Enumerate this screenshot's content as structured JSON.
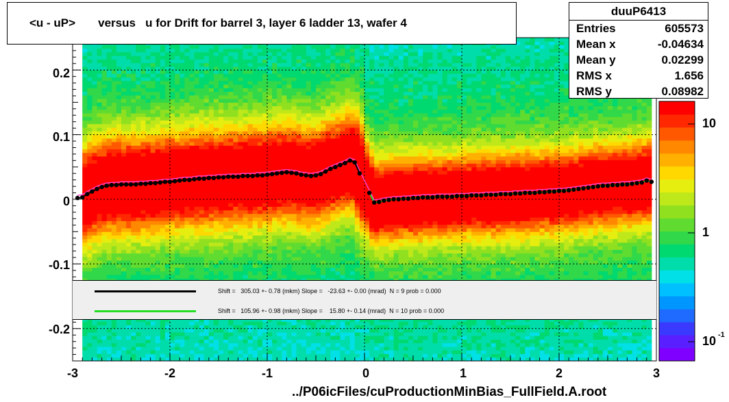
{
  "title": "<u - uP>       versus   u for Drift for barrel 3, layer 6 ladder 13, wafer 4",
  "stats": {
    "name": "duuP6413",
    "rows": [
      {
        "label": "Entries",
        "value": "605573"
      },
      {
        "label": "Mean x",
        "value": "-0.04634"
      },
      {
        "label": "Mean y",
        "value": "0.02299"
      },
      {
        "label": "RMS x",
        "value": "1.656"
      },
      {
        "label": "RMS y",
        "value": "0.08982"
      }
    ]
  },
  "fits": [
    {
      "color": "#000000",
      "text": "Shift =   305.03 +- 0.78 (mkm) Slope =   -23.63 +- 0.00 (mrad)  N = 9 prob = 0.000"
    },
    {
      "color": "#22dd22",
      "text": "Shift =   105.96 +- 0.98 (mkm) Slope =    15.80 +- 0.14 (mrad)  N = 10 prob = 0.000"
    }
  ],
  "x_title": "../P06icFiles/cuProductionMinBias_FullField.A.root",
  "x_ticks": [
    "-3",
    "-2",
    "-1",
    "0",
    "1",
    "2",
    "3"
  ],
  "y_ticks": [
    "0.2",
    "0.1",
    "0",
    "-0.1",
    "-0.2"
  ],
  "z_ticks": [
    "10",
    "1",
    "10"
  ],
  "z_tick_exponent": "-1",
  "chart_data": {
    "type": "heatmap",
    "title": "<u - uP>       versus   u for Drift for barrel 3, layer 6 ladder 13, wafer 4",
    "xlabel": "../P06icFiles/cuProductionMinBias_FullField.A.root",
    "ylabel": "",
    "xlim": [
      -3,
      3
    ],
    "ylim": [
      -0.25,
      0.25
    ],
    "zscale": "log",
    "grid": true,
    "profile_points": {
      "x": [
        -2.95,
        -2.9,
        -2.85,
        -2.8,
        -2.75,
        -2.7,
        -2.65,
        -2.6,
        -2.55,
        -2.5,
        -2.45,
        -2.4,
        -2.35,
        -2.3,
        -2.25,
        -2.2,
        -2.15,
        -2.1,
        -2.05,
        -2.0,
        -1.95,
        -1.9,
        -1.85,
        -1.8,
        -1.75,
        -1.7,
        -1.65,
        -1.6,
        -1.55,
        -1.5,
        -1.45,
        -1.4,
        -1.35,
        -1.3,
        -1.25,
        -1.2,
        -1.15,
        -1.1,
        -1.05,
        -1.0,
        -0.95,
        -0.9,
        -0.85,
        -0.8,
        -0.75,
        -0.7,
        -0.65,
        -0.6,
        -0.55,
        -0.5,
        -0.45,
        -0.4,
        -0.35,
        -0.3,
        -0.25,
        -0.2,
        -0.15,
        -0.1,
        -0.05,
        0.05,
        0.1,
        0.15,
        0.2,
        0.25,
        0.3,
        0.35,
        0.4,
        0.45,
        0.5,
        0.55,
        0.6,
        0.65,
        0.7,
        0.75,
        0.8,
        0.85,
        0.9,
        0.95,
        1.0,
        1.05,
        1.1,
        1.15,
        1.2,
        1.25,
        1.3,
        1.35,
        1.4,
        1.45,
        1.5,
        1.55,
        1.6,
        1.65,
        1.7,
        1.75,
        1.8,
        1.85,
        1.9,
        1.95,
        2.0,
        2.05,
        2.1,
        2.15,
        2.2,
        2.25,
        2.3,
        2.35,
        2.4,
        2.45,
        2.5,
        2.55,
        2.6,
        2.65,
        2.7,
        2.75,
        2.8,
        2.85,
        2.9,
        2.95
      ],
      "y": [
        0.002,
        0.003,
        0.008,
        0.012,
        0.016,
        0.019,
        0.021,
        0.022,
        0.022,
        0.023,
        0.023,
        0.023,
        0.023,
        0.024,
        0.024,
        0.025,
        0.025,
        0.026,
        0.027,
        0.027,
        0.028,
        0.029,
        0.03,
        0.03,
        0.031,
        0.032,
        0.032,
        0.033,
        0.033,
        0.034,
        0.034,
        0.035,
        0.035,
        0.035,
        0.036,
        0.036,
        0.036,
        0.037,
        0.037,
        0.038,
        0.039,
        0.04,
        0.041,
        0.042,
        0.041,
        0.04,
        0.038,
        0.037,
        0.036,
        0.037,
        0.039,
        0.043,
        0.047,
        0.05,
        0.053,
        0.056,
        0.06,
        0.057,
        0.04,
        0.01,
        -0.005,
        -0.004,
        -0.002,
        -0.001,
        0.0,
        0.0,
        0.001,
        0.001,
        0.002,
        0.002,
        0.003,
        0.003,
        0.003,
        0.004,
        0.004,
        0.004,
        0.004,
        0.005,
        0.005,
        0.005,
        0.006,
        0.006,
        0.006,
        0.007,
        0.007,
        0.007,
        0.008,
        0.008,
        0.008,
        0.009,
        0.009,
        0.01,
        0.01,
        0.01,
        0.011,
        0.011,
        0.012,
        0.012,
        0.013,
        0.013,
        0.014,
        0.015,
        0.016,
        0.017,
        0.018,
        0.019,
        0.02,
        0.021,
        0.021,
        0.022,
        0.022,
        0.023,
        0.023,
        0.024,
        0.025,
        0.026,
        0.029,
        0.027
      ]
    },
    "fit_lines": [
      {
        "color": "#000000",
        "x_range": [
          -3.0,
          -0.05
        ],
        "shift_mkm": 305.03,
        "slope_mrad": -23.63
      },
      {
        "color": "#22dd22",
        "x_range": [
          0.05,
          2.95
        ],
        "shift_mkm": 105.96,
        "slope_mrad": 15.8
      }
    ]
  }
}
